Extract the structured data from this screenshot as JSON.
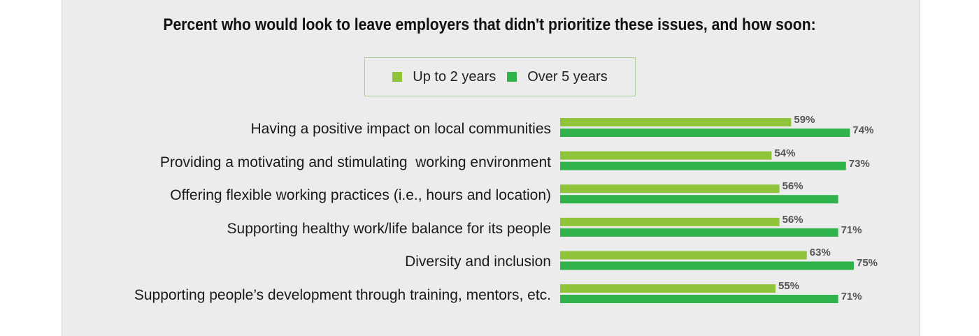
{
  "colors": {
    "panel_bg": "#ececec",
    "series_a": "#8fc33a",
    "series_b": "#2fb34a"
  },
  "chart_data": {
    "type": "bar",
    "orientation": "horizontal",
    "title": "Percent who would look to leave employers that didn't prioritize these issues, and how soon:",
    "categories": [
      "Having a positive impact on local communities",
      "Providing a motivating and stimulating  working environment",
      "Offering flexible working practices (i.e., hours and location)",
      "Supporting healthy work/life balance for its people",
      "Diversity and inclusion",
      "Supporting people’s development through training, mentors, etc."
    ],
    "series": [
      {
        "name": "Up to 2 years",
        "color": "#8fc33a",
        "values": [
          59,
          54,
          56,
          56,
          63,
          55
        ],
        "labels": [
          "59%",
          "54%",
          "56%",
          "56%",
          "63%",
          "55%"
        ]
      },
      {
        "name": "Over 5 years",
        "color": "#2fb34a",
        "values": [
          74,
          73,
          71,
          71,
          75,
          71
        ],
        "labels": [
          "74%",
          "73%",
          "",
          "71%",
          "75%",
          "71%"
        ]
      }
    ],
    "xlim": [
      0,
      100
    ],
    "grid": false,
    "legend_position": "top-center"
  }
}
